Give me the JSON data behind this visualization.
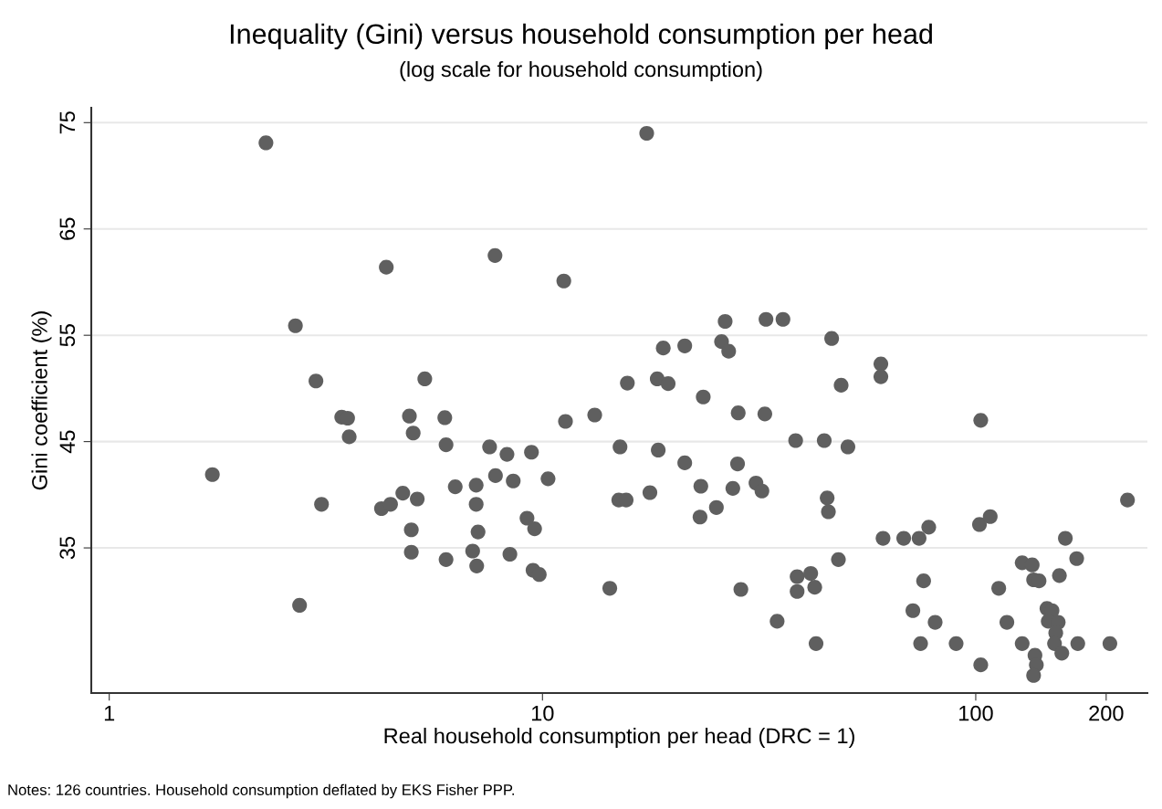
{
  "chart_data": {
    "type": "scatter",
    "title": "Inequality (Gini) versus household consumption per head",
    "subtitle": "(log scale for household consumption)",
    "xlabel": "Real household consumption per head (DRC = 1)",
    "ylabel": "Gini coefficient (%)",
    "annotations": [
      "Notes: 126 countries. Household consumption deflated by EKS Fisher PPP."
    ],
    "log": "x",
    "grid": "y",
    "marker": "circle",
    "xlim": [
      0.909,
      249
    ],
    "xticks": [
      1,
      10,
      100,
      200
    ],
    "ylim": [
      21.35,
      76.4
    ],
    "yticks": [
      35,
      45,
      55,
      65,
      75
    ],
    "series": [
      {
        "color": "#5f5f5f",
        "x": [
          2.3,
          4.36,
          2.69,
          3.0,
          5.35,
          17.4,
          7.77,
          11.2,
          26.4,
          32.8,
          35.9,
          19.0,
          21.3,
          25.9,
          26.9,
          15.7,
          18.4,
          19.5,
          23.5,
          46.5,
          60.4,
          60.4,
          48.9,
          3.44,
          3.55,
          3.58,
          4.93,
          5.03,
          5.95,
          5.99,
          6.29,
          1.73,
          3.09,
          4.25,
          4.46,
          4.76,
          5.14,
          4.98,
          4.98,
          5.99,
          2.75,
          28.3,
          32.6,
          38.4,
          11.3,
          13.2,
          7.55,
          8.28,
          9.43,
          15.1,
          18.5,
          21.3,
          28.2,
          7.79,
          8.56,
          10.3,
          7.03,
          7.03,
          7.1,
          6.9,
          7.05,
          8.41,
          9.21,
          9.59,
          9.51,
          9.83,
          15.0,
          15.6,
          17.7,
          23.2,
          23.1,
          25.2,
          27.5,
          31.1,
          32.1,
          14.3,
          28.7,
          34.8,
          38.7,
          38.7,
          41.6,
          42.5,
          42.8,
          44.7,
          50.7,
          102.7,
          45.4,
          45.7,
          224,
          61.1,
          68.2,
          74.0,
          77.9,
          102,
          108,
          161,
          171,
          48.2,
          75.8,
          113,
          128,
          135,
          136,
          140,
          156,
          71.6,
          80.6,
          118,
          146,
          150,
          147,
          155,
          153,
          152,
          158,
          74.6,
          90.1,
          128,
          172,
          204,
          102.7,
          137,
          138,
          136
        ],
        "values": [
          73.1,
          61.4,
          55.9,
          50.7,
          50.9,
          74.0,
          62.5,
          60.1,
          56.3,
          56.5,
          56.5,
          53.8,
          54.0,
          54.4,
          53.5,
          50.5,
          50.9,
          50.45,
          49.2,
          54.7,
          52.3,
          51.1,
          50.3,
          47.3,
          47.2,
          45.45,
          47.4,
          45.8,
          47.25,
          44.7,
          40.75,
          41.9,
          39.1,
          38.7,
          39.1,
          40.15,
          39.6,
          36.7,
          34.6,
          33.9,
          29.6,
          47.7,
          47.6,
          45.1,
          46.9,
          47.5,
          44.5,
          43.8,
          44.0,
          44.5,
          44.2,
          43.0,
          42.9,
          41.8,
          41.3,
          41.5,
          40.9,
          39.1,
          36.5,
          34.7,
          33.3,
          34.4,
          37.8,
          36.8,
          32.9,
          32.5,
          39.5,
          39.5,
          40.2,
          40.8,
          37.9,
          38.8,
          40.6,
          41.1,
          40.35,
          31.2,
          31.1,
          28.1,
          32.3,
          30.9,
          32.6,
          31.3,
          26.0,
          45.1,
          44.5,
          47.0,
          39.7,
          38.4,
          39.5,
          35.9,
          35.9,
          35.9,
          36.95,
          37.2,
          37.95,
          35.9,
          34.0,
          33.9,
          31.9,
          31.2,
          33.6,
          33.4,
          32.0,
          31.9,
          32.4,
          29.1,
          28.0,
          28.0,
          29.3,
          29.1,
          28.1,
          28.0,
          27.0,
          26.0,
          25.1,
          26.0,
          26.0,
          26.0,
          26.0,
          26.0,
          24.0,
          24.9,
          24.0,
          23.0
        ]
      }
    ]
  }
}
